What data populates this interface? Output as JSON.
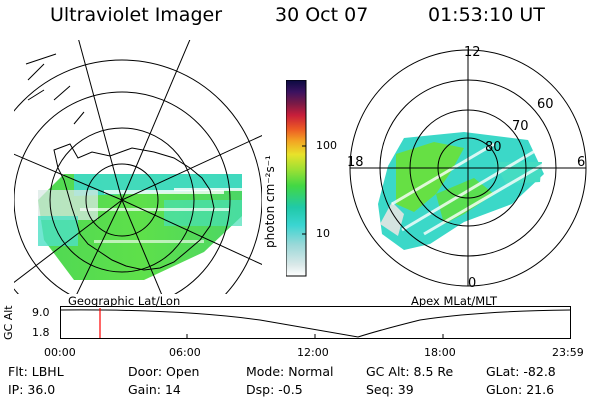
{
  "header": {
    "title": "Ultraviolet Imager",
    "date": "30 Oct 07",
    "time": "01:53:10 UT"
  },
  "left_panel": {
    "caption": "Geographic Lat/Lon"
  },
  "right_panel": {
    "caption": "Apex MLat/MLT",
    "mlt_labels": {
      "top": "12",
      "left": "18",
      "right": "6",
      "bottom": "0"
    },
    "lat_labels": [
      "60",
      "70",
      "80"
    ]
  },
  "colorbar": {
    "unit_label": "photon cm⁻²s⁻¹",
    "ticks": [
      "100",
      "10"
    ]
  },
  "timeline": {
    "axis_label": "GC Alt",
    "y_ticks": [
      "9.0",
      "1.8"
    ],
    "x_ticks": [
      "00:00",
      "06:00",
      "12:00",
      "18:00",
      "23:59"
    ],
    "current_marker_color": "#ff0000"
  },
  "info": {
    "row1": [
      {
        "label": "Flt:",
        "value": "LBHL"
      },
      {
        "label": "Door:",
        "value": "Open"
      },
      {
        "label": "Mode:",
        "value": "Normal"
      },
      {
        "label": "GC Alt:",
        "value": "8.5 Re"
      },
      {
        "label": "GLat:",
        "value": "-82.8"
      }
    ],
    "row2": [
      {
        "label": "IP:",
        "value": "36.0"
      },
      {
        "label": "Gain:",
        "value": "14"
      },
      {
        "label": "Dsp:",
        "value": "-0.5"
      },
      {
        "label": "Seq:",
        "value": "39"
      },
      {
        "label": "GLon:",
        "value": "21.6"
      }
    ]
  },
  "colors": {
    "swath_green": "#55dd44",
    "swath_cyan": "#33ddcc",
    "swath_white": "#e6f0ee"
  }
}
